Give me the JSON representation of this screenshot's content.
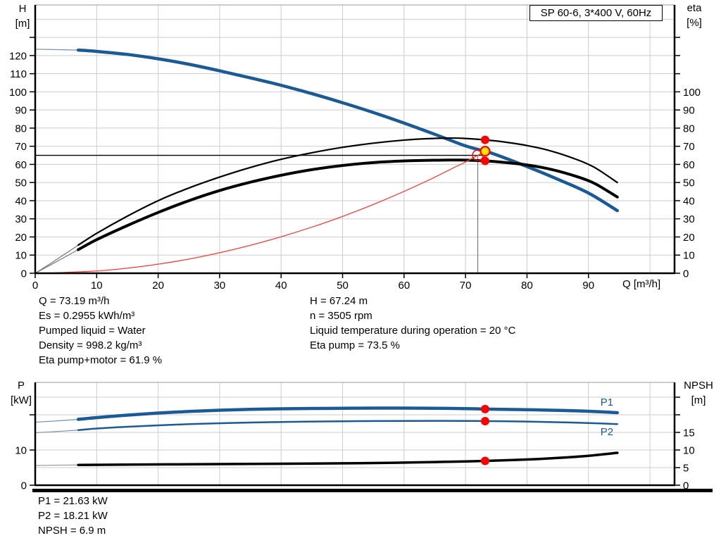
{
  "title_box": "SP 60-6, 3*400 V, 60Hz",
  "axis_titles": {
    "top_left": [
      "H",
      "[m]"
    ],
    "top_right": [
      "eta",
      "[%]"
    ],
    "x": "Q [m³/h]",
    "bottom_left": [
      "P",
      "[kW]"
    ],
    "bottom_right": [
      "NPSH",
      "[m]"
    ]
  },
  "results": {
    "left": [
      "Q = 73.19 m³/h",
      "Es = 0.2955 kWh/m³",
      "Pumped liquid = Water",
      "Density = 998.2 kg/m³",
      "Eta pump+motor = 61.9 %"
    ],
    "right": [
      "H = 67.24 m",
      "n = 3505 rpm",
      "Liquid temperature during operation = 20 °C",
      "Eta pump = 73.5 %"
    ],
    "bottom": [
      "P1 = 21.63 kW",
      "P2 = 18.21 kW",
      "NPSH = 6.9 m"
    ]
  },
  "colors": {
    "curve_blue": "#1a5a96",
    "red": "#ff0000",
    "system_red": "#ff3b30",
    "yellow": "#ffe400",
    "grid": "#cdcdcd",
    "lead_blue": "#7d93b5",
    "lead_gray": "#777777"
  },
  "chart_data": [
    {
      "type": "line",
      "title": "SP 60-6, 3*400 V, 60Hz",
      "xlabel": "Q [m³/h]",
      "ylabel_left": "H [m]",
      "ylabel_right": "eta [%]",
      "xlim": [
        0,
        104
      ],
      "ylim": [
        0,
        147.9
      ],
      "grid_x": [
        10,
        20,
        30,
        40,
        50,
        60,
        70,
        80,
        90,
        100
      ],
      "grid_y": [
        10,
        20,
        30,
        40,
        50,
        60,
        70,
        80,
        90,
        100,
        110,
        120,
        130,
        140
      ],
      "x_ticks": {
        "vals": [
          0,
          10,
          20,
          30,
          40,
          50,
          60,
          70,
          80,
          90
        ],
        "labels": [
          "0",
          "10",
          "20",
          "30",
          "40",
          "50",
          "60",
          "70",
          "80",
          "90"
        ]
      },
      "left_ticks": {
        "vals": [
          0,
          10,
          20,
          30,
          40,
          50,
          60,
          70,
          80,
          90,
          100,
          110,
          120,
          130
        ],
        "labels": [
          "0",
          "10",
          "20",
          "30",
          "40",
          "50",
          "60",
          "70",
          "80",
          "90",
          "100",
          "110",
          "120",
          ""
        ]
      },
      "right_ticks": {
        "vals": [
          0,
          10,
          20,
          30,
          40,
          50,
          60,
          70,
          80,
          90,
          100,
          110,
          120,
          130
        ],
        "labels": [
          "0",
          "10",
          "20",
          "30",
          "40",
          "50",
          "60",
          "70",
          "80",
          "90",
          "100",
          "",
          "",
          ""
        ]
      },
      "guide_lines": [
        {
          "name": "duty-head-line",
          "x1": 0,
          "v1": 65,
          "x2": 73.5,
          "v2": 65,
          "color": "#000000",
          "w": 1.3
        },
        {
          "name": "duty-flow-line",
          "x1": 72,
          "v1": 0,
          "x2": 72,
          "v2": 65,
          "color": "#666666",
          "w": 1
        }
      ],
      "series": [
        {
          "name": "H-Q lead",
          "color": "#7d93b5",
          "width": 1.3,
          "points": [
            [
              0,
              123.5
            ],
            [
              3,
              123.3
            ],
            [
              7,
              123
            ]
          ]
        },
        {
          "name": "H-Q pump curve",
          "color": "#1a5a96",
          "width": 4.5,
          "points": [
            [
              7,
              123
            ],
            [
              10,
              122.3
            ],
            [
              15,
              120.6
            ],
            [
              20,
              118.2
            ],
            [
              25,
              115.2
            ],
            [
              30,
              111.6
            ],
            [
              35,
              107.7
            ],
            [
              40,
              103.6
            ],
            [
              45,
              99
            ],
            [
              50,
              94
            ],
            [
              55,
              88.6
            ],
            [
              60,
              82.8
            ],
            [
              65,
              76.6
            ],
            [
              70,
              70.2
            ],
            [
              73.19,
              67.24
            ],
            [
              75,
              65.3
            ],
            [
              80,
              58.8
            ],
            [
              85,
              51.8
            ],
            [
              90,
              44.2
            ],
            [
              94.7,
              34.5
            ]
          ]
        },
        {
          "name": "eta pump lead",
          "color": "#777777",
          "width": 1.2,
          "points": [
            [
              0,
              0
            ],
            [
              3,
              6.5
            ],
            [
              7,
              15.5
            ]
          ]
        },
        {
          "name": "eta pump",
          "color": "#000000",
          "width": 2.2,
          "points": [
            [
              7,
              15.5
            ],
            [
              10,
              22
            ],
            [
              15,
              31.5
            ],
            [
              20,
              40
            ],
            [
              25,
              47
            ],
            [
              30,
              53
            ],
            [
              35,
              58.3
            ],
            [
              40,
              62.8
            ],
            [
              45,
              66.4
            ],
            [
              50,
              69.4
            ],
            [
              55,
              71.7
            ],
            [
              60,
              73.4
            ],
            [
              64,
              74.2
            ],
            [
              68,
              74.5
            ],
            [
              70,
              74.3
            ],
            [
              73.19,
              73.5
            ],
            [
              76,
              72.5
            ],
            [
              80,
              70.4
            ],
            [
              84,
              67.3
            ],
            [
              88,
              62.8
            ],
            [
              91,
              58.3
            ],
            [
              94.7,
              50
            ]
          ]
        },
        {
          "name": "eta pump plus motor lead",
          "color": "#777777",
          "width": 1.2,
          "points": [
            [
              0,
              0
            ],
            [
              3,
              5.5
            ],
            [
              7,
              13
            ]
          ]
        },
        {
          "name": "eta pump plus motor",
          "color": "#000000",
          "width": 4,
          "points": [
            [
              7,
              13
            ],
            [
              10,
              18.5
            ],
            [
              15,
              26.3
            ],
            [
              20,
              33.5
            ],
            [
              25,
              40
            ],
            [
              30,
              45.6
            ],
            [
              35,
              50.2
            ],
            [
              40,
              54
            ],
            [
              45,
              57.1
            ],
            [
              50,
              59.4
            ],
            [
              55,
              61
            ],
            [
              60,
              61.9
            ],
            [
              65,
              62.3
            ],
            [
              69,
              62.4
            ],
            [
              73.19,
              61.9
            ],
            [
              76,
              61.2
            ],
            [
              80,
              59.7
            ],
            [
              84,
              57.2
            ],
            [
              88,
              53.4
            ],
            [
              91,
              49.5
            ],
            [
              94.7,
              42
            ]
          ]
        },
        {
          "name": "system curve",
          "color": "#ff3b30",
          "width": 1.3,
          "points": [
            [
              2,
              0.05
            ],
            [
              10,
              1.25
            ],
            [
              15,
              2.8
            ],
            [
              20,
              5
            ],
            [
              25,
              7.8
            ],
            [
              30,
              11.3
            ],
            [
              35,
              15.4
            ],
            [
              40,
              20.1
            ],
            [
              45,
              25.4
            ],
            [
              50,
              31.3
            ],
            [
              55,
              37.9
            ],
            [
              60,
              45.1
            ],
            [
              64,
              51.3
            ],
            [
              68,
              58
            ],
            [
              70,
              61.3
            ],
            [
              72,
              65
            ],
            [
              73.19,
              67.1
            ]
          ]
        }
      ],
      "markers": [
        {
          "name": "duty-point-ring",
          "x": 72,
          "v": 65,
          "r": 7.5,
          "fill": "none",
          "stroke": "#ff0000",
          "sw": 1.5
        },
        {
          "name": "eta-pump-point",
          "x": 73.19,
          "v": 73.5,
          "r": 6,
          "fill": "#ff0000"
        },
        {
          "name": "eta-total-point",
          "x": 73.19,
          "v": 61.9,
          "r": 6,
          "fill": "#ff0000"
        },
        {
          "name": "operating-point",
          "x": 73.19,
          "v": 67.24,
          "r": 6.5,
          "fill": "#ffe400",
          "stroke": "#ff0000",
          "sw": 2.2
        }
      ],
      "annotations": []
    },
    {
      "type": "line",
      "title": "Power and NPSH",
      "xlabel": "Q [m³/h]",
      "ylabel_left": "P [kW]",
      "ylabel_right": "NPSH [m]",
      "xlim": [
        0,
        104
      ],
      "ylim": [
        0,
        29.2
      ],
      "grid_x": [
        10,
        20,
        30,
        40,
        50,
        60,
        70,
        80,
        90,
        100
      ],
      "grid_y": [
        5,
        10,
        15,
        20,
        25
      ],
      "x_ticks": {
        "vals": [],
        "labels": []
      },
      "left_ticks": {
        "vals": [
          0,
          10,
          20
        ],
        "labels": [
          "0",
          "10",
          ""
        ]
      },
      "right_ticks": {
        "vals": [
          0,
          5,
          10,
          15,
          20,
          25
        ],
        "labels": [
          "0",
          "5",
          "10",
          "15",
          "",
          ""
        ]
      },
      "guide_lines": [],
      "series": [
        {
          "name": "P1 lead",
          "color": "#7d93b5",
          "width": 1.3,
          "points": [
            [
              0,
              17.9
            ],
            [
              3,
              18.2
            ],
            [
              7,
              18.7
            ]
          ]
        },
        {
          "name": "P1 input power",
          "color": "#1a5a96",
          "width": 4.5,
          "points": [
            [
              7,
              18.7
            ],
            [
              10,
              19.2
            ],
            [
              15,
              19.9
            ],
            [
              20,
              20.5
            ],
            [
              25,
              20.95
            ],
            [
              30,
              21.3
            ],
            [
              35,
              21.55
            ],
            [
              40,
              21.7
            ],
            [
              45,
              21.8
            ],
            [
              50,
              21.85
            ],
            [
              55,
              21.9
            ],
            [
              60,
              21.9
            ],
            [
              65,
              21.85
            ],
            [
              70,
              21.75
            ],
            [
              73.19,
              21.63
            ],
            [
              78,
              21.5
            ],
            [
              82,
              21.38
            ],
            [
              86,
              21.22
            ],
            [
              90,
              21
            ],
            [
              94.7,
              20.6
            ]
          ]
        },
        {
          "name": "P2 lead",
          "color": "#7d93b5",
          "width": 1.2,
          "points": [
            [
              0,
              14.9
            ],
            [
              3,
              15.2
            ],
            [
              7,
              15.65
            ]
          ]
        },
        {
          "name": "P2 shaft power",
          "color": "#1a5a96",
          "width": 2.5,
          "points": [
            [
              7,
              15.65
            ],
            [
              10,
              16.1
            ],
            [
              15,
              16.6
            ],
            [
              20,
              17
            ],
            [
              25,
              17.35
            ],
            [
              30,
              17.6
            ],
            [
              35,
              17.8
            ],
            [
              40,
              17.95
            ],
            [
              45,
              18.08
            ],
            [
              50,
              18.16
            ],
            [
              55,
              18.22
            ],
            [
              60,
              18.26
            ],
            [
              65,
              18.28
            ],
            [
              70,
              18.26
            ],
            [
              73.19,
              18.21
            ],
            [
              78,
              18.12
            ],
            [
              82,
              18
            ],
            [
              86,
              17.85
            ],
            [
              90,
              17.66
            ],
            [
              94.7,
              17.35
            ]
          ]
        },
        {
          "name": "NPSH lead",
          "color": "#999999",
          "width": 1.2,
          "points": [
            [
              0,
              5.6
            ],
            [
              4,
              5.7
            ],
            [
              7,
              5.75
            ]
          ]
        },
        {
          "name": "NPSH curve",
          "color": "#000000",
          "width": 3.5,
          "points": [
            [
              7,
              5.75
            ],
            [
              15,
              5.85
            ],
            [
              25,
              5.95
            ],
            [
              35,
              6.05
            ],
            [
              45,
              6.15
            ],
            [
              55,
              6.3
            ],
            [
              60,
              6.42
            ],
            [
              65,
              6.58
            ],
            [
              70,
              6.76
            ],
            [
              73.19,
              6.9
            ],
            [
              78,
              7.18
            ],
            [
              82,
              7.45
            ],
            [
              86,
              7.85
            ],
            [
              90,
              8.35
            ],
            [
              94.7,
              9.2
            ]
          ]
        }
      ],
      "markers": [
        {
          "name": "p1-point",
          "x": 73.19,
          "v": 21.63,
          "r": 6,
          "fill": "#ff0000"
        },
        {
          "name": "p2-point",
          "x": 73.19,
          "v": 18.21,
          "r": 6,
          "fill": "#ff0000"
        },
        {
          "name": "npsh-point",
          "x": 73.19,
          "v": 6.9,
          "r": 6,
          "fill": "#ff0000"
        }
      ],
      "annotations": [
        {
          "text": "P1",
          "x": 93,
          "v": 22.6,
          "color": "#1a5a96"
        },
        {
          "text": "P2",
          "x": 93,
          "v": 14.2,
          "color": "#1a5a96"
        }
      ]
    }
  ]
}
